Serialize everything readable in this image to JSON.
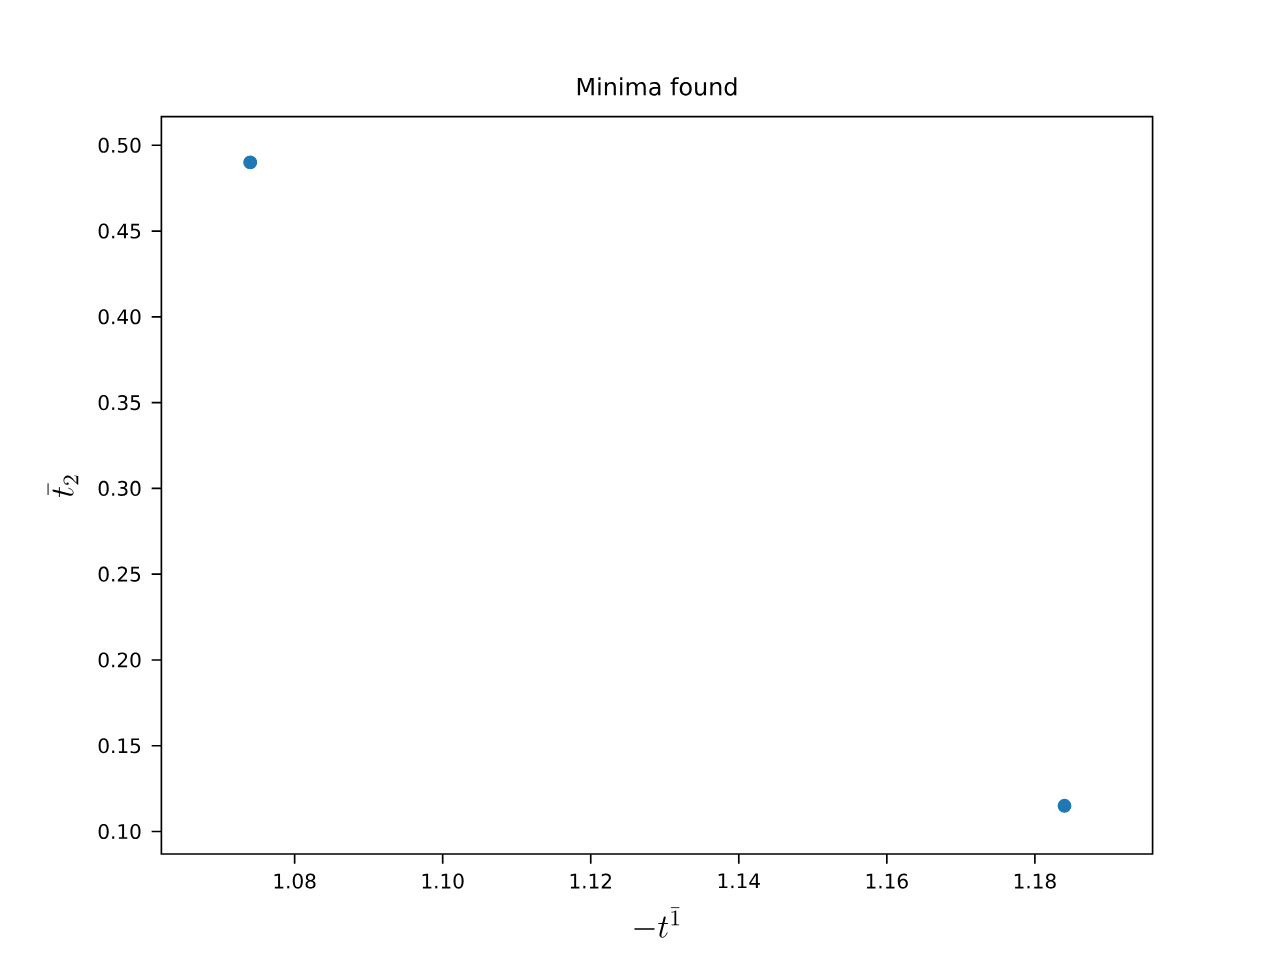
{
  "chart_data": {
    "type": "scatter",
    "title": "Minima found",
    "xlabel": "-t^{\\bar{1}}",
    "ylabel": "\\bar{t}_2",
    "x": [
      1.074,
      1.184
    ],
    "series": [
      {
        "color": "#1f77b4",
        "values": [
          0.49,
          0.115
        ]
      }
    ],
    "xlim": [
      1.062,
      1.1959
    ],
    "ylim": [
      0.0869,
      0.5167
    ],
    "xticks": [
      {
        "value": 1.08,
        "label": "1.08"
      },
      {
        "value": 1.1,
        "label": "1.10"
      },
      {
        "value": 1.12,
        "label": "1.12"
      },
      {
        "value": 1.14,
        "label": "1.14"
      },
      {
        "value": 1.16,
        "label": "1.16"
      },
      {
        "value": 1.18,
        "label": "1.18"
      }
    ],
    "yticks": [
      {
        "value": 0.1,
        "label": "0.10"
      },
      {
        "value": 0.15,
        "label": "0.15"
      },
      {
        "value": 0.2,
        "label": "0.20"
      },
      {
        "value": 0.25,
        "label": "0.25"
      },
      {
        "value": 0.3,
        "label": "0.30"
      },
      {
        "value": 0.35,
        "label": "0.35"
      },
      {
        "value": 0.4,
        "label": "0.40"
      },
      {
        "value": 0.45,
        "label": "0.45"
      },
      {
        "value": 0.5,
        "label": "0.50"
      }
    ]
  }
}
